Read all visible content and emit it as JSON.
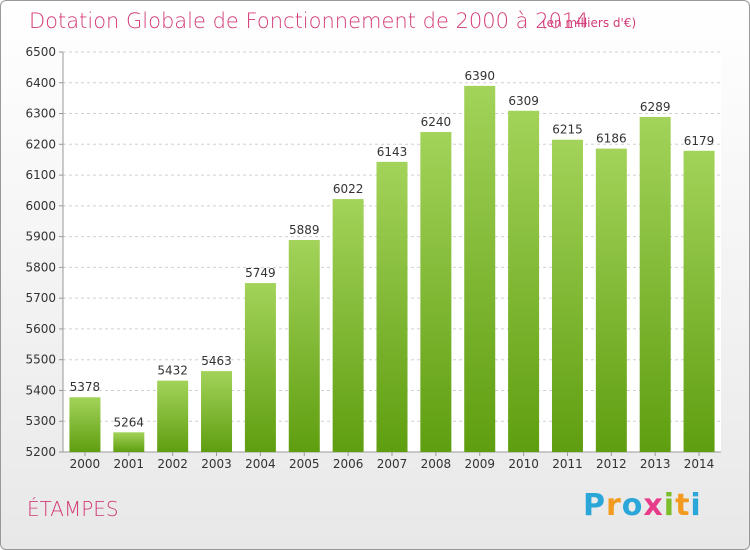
{
  "title": "Dotation Globale de Fonctionnement de 2000 à 2014",
  "subtitle": "(en milliers d'€)",
  "commune": "ÉTAMPES",
  "brand": {
    "letters": [
      "P",
      "r",
      "o",
      "x",
      "i",
      "t",
      "i"
    ],
    "colors": [
      "#2aa7d8",
      "#f29b20",
      "#2aa7d8",
      "#e83c8b",
      "#7cbd2a",
      "#f29b20",
      "#2aa7d8"
    ]
  },
  "colors": {
    "bar_top": "#a3d35a",
    "bar_bottom": "#5f9e10",
    "title": "#d33a78"
  },
  "chart_data": {
    "type": "bar",
    "categories": [
      "2000",
      "2001",
      "2002",
      "2003",
      "2004",
      "2005",
      "2006",
      "2007",
      "2008",
      "2009",
      "2010",
      "2011",
      "2012",
      "2013",
      "2014"
    ],
    "values": [
      5378,
      5264,
      5432,
      5463,
      5749,
      5889,
      6022,
      6143,
      6240,
      6390,
      6309,
      6215,
      6186,
      6289,
      6179
    ],
    "ylim": [
      5200,
      6500
    ],
    "yticks": [
      5200,
      5300,
      5400,
      5500,
      5600,
      5700,
      5800,
      5900,
      6000,
      6100,
      6200,
      6300,
      6400,
      6500
    ],
    "grid": true
  }
}
